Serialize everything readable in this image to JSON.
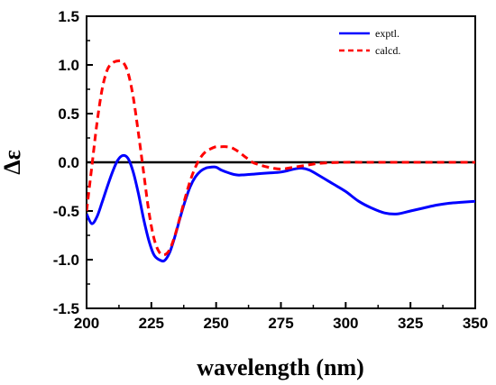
{
  "chart_data": {
    "type": "line",
    "xlabel": "wavelength (nm)",
    "ylabel": "Δε",
    "xlim": [
      200,
      350
    ],
    "ylim": [
      -1.5,
      1.5
    ],
    "xticks": [
      "200",
      "225",
      "250",
      "275",
      "300",
      "325",
      "350"
    ],
    "yticks": [
      "1.5",
      "1.0",
      "0.5",
      "0.0",
      "-0.5",
      "-1.0",
      "-1.5"
    ],
    "legend_position": "top-right",
    "zero_line": true,
    "series": [
      {
        "name": "exptl.",
        "color": "#0000ff",
        "style": "solid",
        "x": [
          200,
          202,
          204,
          206,
          208,
          210,
          212,
          214,
          216,
          218,
          220,
          222,
          224,
          226,
          228,
          230,
          232,
          234,
          236,
          238,
          240,
          242,
          244,
          246,
          248,
          250,
          252,
          255,
          258,
          260,
          265,
          270,
          275,
          280,
          283,
          286,
          290,
          295,
          300,
          305,
          310,
          315,
          320,
          325,
          330,
          335,
          340,
          345,
          350
        ],
        "y": [
          -0.53,
          -0.63,
          -0.56,
          -0.41,
          -0.25,
          -0.1,
          0.02,
          0.07,
          0.04,
          -0.1,
          -0.32,
          -0.58,
          -0.8,
          -0.95,
          -1.0,
          -1.01,
          -0.93,
          -0.77,
          -0.58,
          -0.4,
          -0.25,
          -0.15,
          -0.09,
          -0.06,
          -0.05,
          -0.05,
          -0.08,
          -0.11,
          -0.13,
          -0.13,
          -0.12,
          -0.11,
          -0.1,
          -0.07,
          -0.06,
          -0.08,
          -0.14,
          -0.22,
          -0.3,
          -0.4,
          -0.47,
          -0.52,
          -0.53,
          -0.5,
          -0.47,
          -0.44,
          -0.42,
          -0.41,
          -0.4
        ]
      },
      {
        "name": "calcd.",
        "color": "#ff0000",
        "style": "dashed",
        "x": [
          200,
          202,
          204,
          206,
          208,
          210,
          212,
          214,
          216,
          218,
          220,
          222,
          224,
          226,
          228,
          230,
          232,
          234,
          236,
          238,
          240,
          242,
          244,
          246,
          248,
          250,
          252,
          254,
          256,
          258,
          260,
          262,
          264,
          266,
          270,
          275,
          280,
          285,
          290,
          300,
          310,
          320,
          330,
          340,
          350
        ],
        "y": [
          -0.5,
          -0.05,
          0.4,
          0.75,
          0.95,
          1.02,
          1.04,
          1.03,
          0.92,
          0.67,
          0.3,
          -0.1,
          -0.5,
          -0.78,
          -0.92,
          -0.95,
          -0.9,
          -0.76,
          -0.57,
          -0.37,
          -0.19,
          -0.05,
          0.05,
          0.11,
          0.14,
          0.16,
          0.16,
          0.16,
          0.15,
          0.12,
          0.08,
          0.04,
          0.0,
          -0.02,
          -0.05,
          -0.07,
          -0.05,
          -0.03,
          -0.01,
          0.0,
          0.0,
          0.0,
          0.0,
          0.0,
          0.0
        ]
      }
    ]
  }
}
